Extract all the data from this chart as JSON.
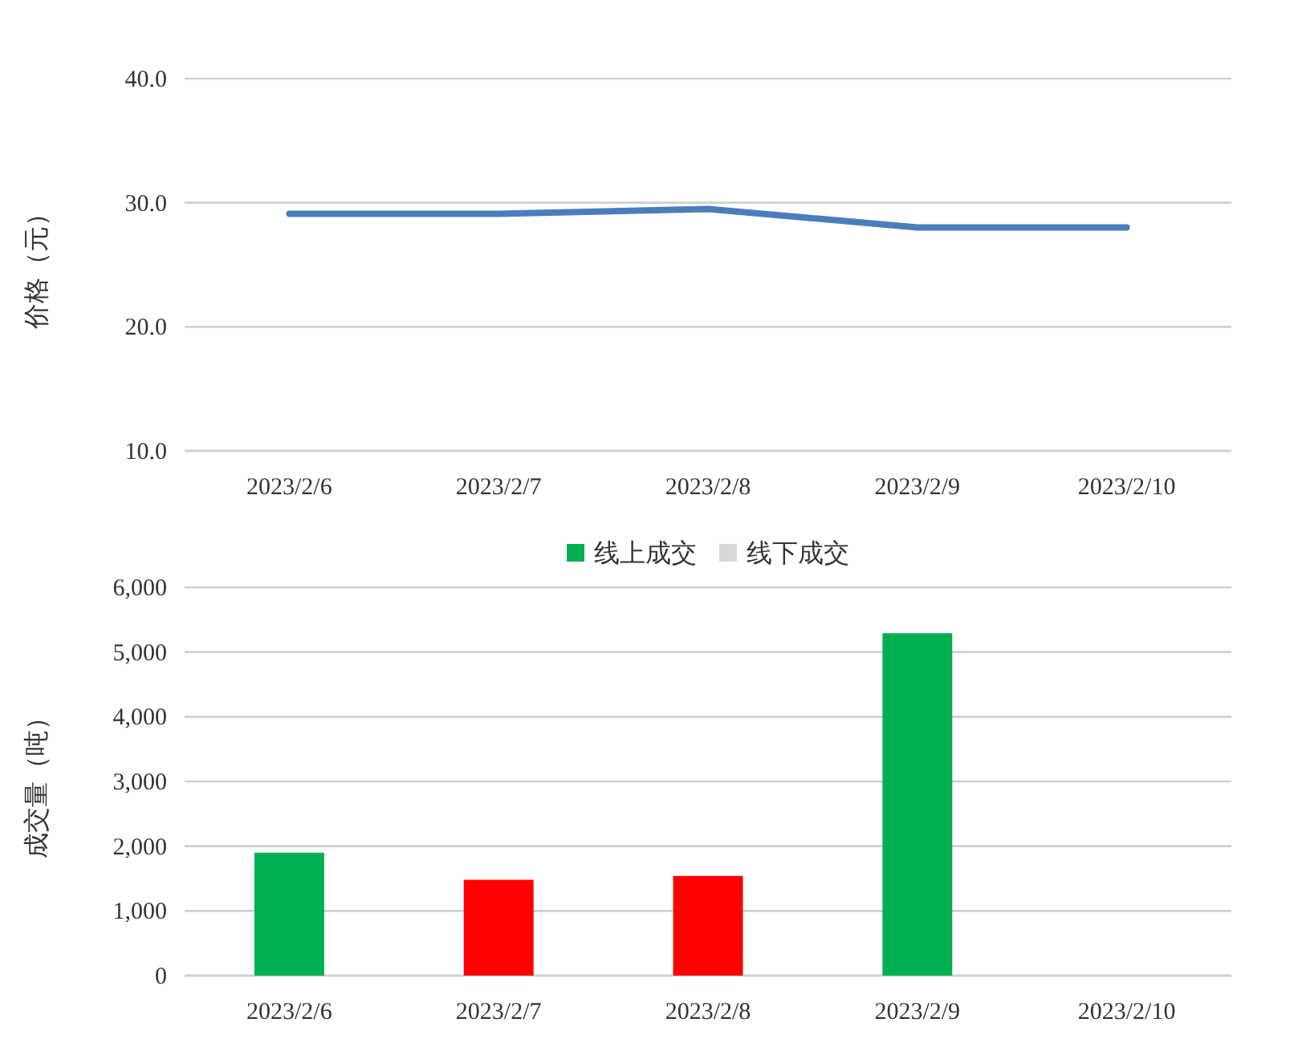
{
  "chart_data": [
    {
      "type": "line",
      "ylabel": "价格（元）",
      "categories": [
        "2023/2/6",
        "2023/2/7",
        "2023/2/8",
        "2023/2/9",
        "2023/2/10"
      ],
      "series": [
        {
          "color": "#4a7ebb",
          "values": [
            29.1,
            29.1,
            29.5,
            28.0,
            28.0
          ]
        }
      ],
      "ylim": [
        10,
        40
      ],
      "yticks": [
        {
          "value": 10,
          "label": "10.0"
        },
        {
          "value": 20,
          "label": "20.0"
        },
        {
          "value": 30,
          "label": "30.0"
        },
        {
          "value": 40,
          "label": "40.0"
        }
      ],
      "grid": "y"
    },
    {
      "type": "bar",
      "ylabel": "成交量（吨）",
      "categories": [
        "2023/2/6",
        "2023/2/7",
        "2023/2/8",
        "2023/2/9",
        "2023/2/10"
      ],
      "series": [
        {
          "name": "线上成交",
          "color": "#00b050",
          "colors": [
            "#00b050",
            "#ff0000",
            "#ff0000",
            "#00b050",
            null
          ],
          "values": [
            1900,
            1480,
            1540,
            5290,
            null
          ]
        },
        {
          "name": "线下成交",
          "color": "#d9d9d9",
          "values": [
            null,
            null,
            null,
            null,
            null
          ]
        }
      ],
      "ylim": [
        0,
        6000
      ],
      "yticks": [
        0,
        {
          "value": 1000,
          "label": "1,000"
        },
        {
          "value": 2000,
          "label": "2,000"
        },
        {
          "value": 3000,
          "label": "3,000"
        },
        {
          "value": 4000,
          "label": "4,000"
        },
        {
          "value": 5000,
          "label": "5,000"
        },
        {
          "value": 6000,
          "label": "6,000"
        }
      ],
      "grid": "y",
      "legend": "top"
    }
  ]
}
